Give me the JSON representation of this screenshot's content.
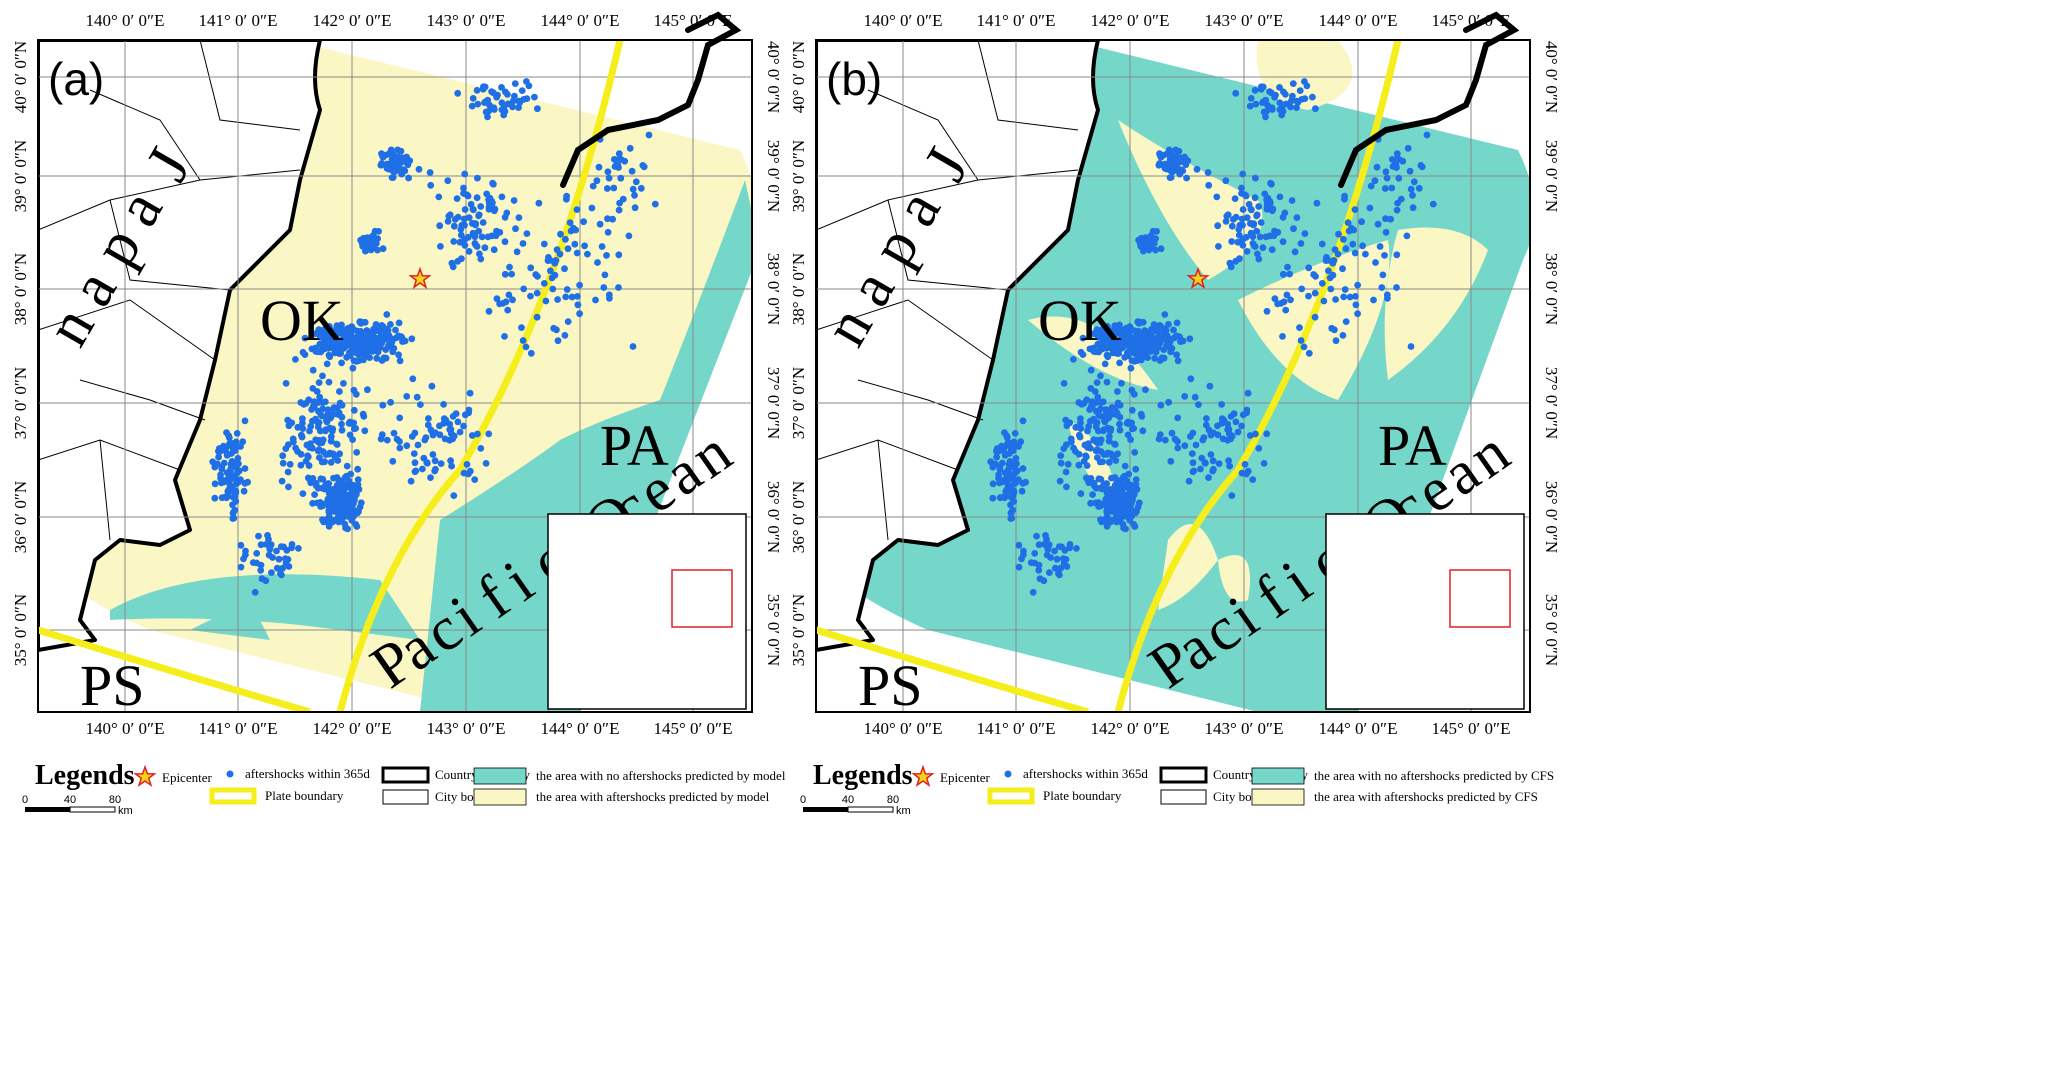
{
  "panels": [
    {
      "id": "a",
      "tag": "(a)",
      "model": "model",
      "lon_labels": [
        "140° 0′ 0″E",
        "141° 0′ 0″E",
        "142° 0′ 0″E",
        "143° 0′ 0″E",
        "144° 0′ 0″E",
        "145° 0′ 0″E"
      ],
      "lat_labels": [
        "40° 0′ 0″N",
        "39° 0′ 0″N",
        "38° 0′ 0″N",
        "37° 0′ 0″N",
        "36° 0′ 0″N",
        "35° 0′ 0″N"
      ],
      "place_labels": {
        "ok": "OK",
        "pa": "PA",
        "ps": "PS",
        "japan": "Japan",
        "ocean": "Pacific Ocean"
      },
      "legend": {
        "title": "Legends",
        "epicenter": "Epicenter",
        "aftershocks": "aftershocks within 365d",
        "country_boundary": "Country boundary",
        "city_boundary": "City boundary",
        "plate_boundary": "Plate boundary",
        "no_aftershock_area": "the area with no aftershocks predicted by model",
        "aftershock_area": "the area with aftershocks predicted by model",
        "scale": [
          "0",
          "40",
          "80",
          "km"
        ]
      }
    },
    {
      "id": "b",
      "tag": "(b)",
      "model": "CFS",
      "lon_labels": [
        "140° 0′ 0″E",
        "141° 0′ 0″E",
        "142° 0′ 0″E",
        "143° 0′ 0″E",
        "144° 0′ 0″E",
        "145° 0′ 0″E"
      ],
      "lat_labels": [
        "40° 0′ 0″N",
        "39° 0′ 0″N",
        "38° 0′ 0″N",
        "37° 0′ 0″N",
        "36° 0′ 0″N",
        "35° 0′ 0″N"
      ],
      "place_labels": {
        "ok": "OK",
        "pa": "PA",
        "ps": "PS",
        "japan": "Japan",
        "ocean": "Pacific Ocean"
      },
      "legend": {
        "title": "Legends",
        "epicenter": "Epicenter",
        "aftershocks": "aftershocks within 365d",
        "country_boundary": "Country boundary",
        "city_boundary": "City boundary",
        "plate_boundary": "Plate boundary",
        "no_aftershock_area": "the area with no aftershocks predicted by CFS",
        "aftershock_area": "the area with aftershocks predicted by CFS",
        "scale": [
          "0",
          "40",
          "80",
          "km"
        ]
      }
    }
  ],
  "colors": {
    "prediction_yellow": "#fbf7c4",
    "prediction_teal": "#74d7c9",
    "aftershock_dot": "#1f6fe6",
    "plate_boundary": "#f5ee1c",
    "epicenter_fill": "#f6d21c",
    "epicenter_stroke": "#e02020",
    "inset_box": "#e02020"
  },
  "icons": {
    "epicenter": "star-icon",
    "aftershock": "dot-icon"
  }
}
